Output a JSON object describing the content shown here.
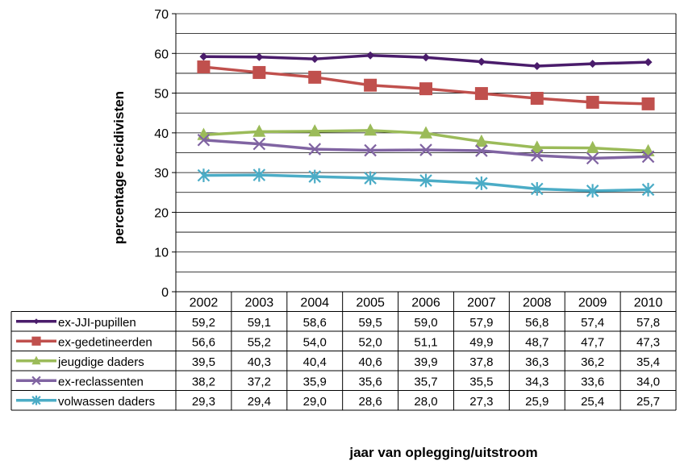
{
  "chart_data": {
    "type": "line",
    "title": "",
    "xlabel": "jaar van oplegging/uitstroom",
    "ylabel": "percentage recidivisten",
    "ylim": [
      0,
      70
    ],
    "yticks": [
      "0",
      "10",
      "20",
      "30",
      "40",
      "50",
      "60",
      "70"
    ],
    "ytick_values": [
      0,
      10,
      20,
      30,
      40,
      50,
      60,
      70
    ],
    "grid_step": 5,
    "grid": true,
    "legend": "data-table",
    "categories": [
      "2002",
      "2003",
      "2004",
      "2005",
      "2006",
      "2007",
      "2008",
      "2009",
      "2010"
    ],
    "series": [
      {
        "name": "ex-JJI-pupillen",
        "color": "#4a1c6b",
        "marker": "diamond",
        "values": [
          59.2,
          59.1,
          58.6,
          59.5,
          59.0,
          57.9,
          56.8,
          57.4,
          57.8
        ],
        "labels": [
          "59,2",
          "59,1",
          "58,6",
          "59,5",
          "59,0",
          "57,9",
          "56,8",
          "57,4",
          "57,8"
        ]
      },
      {
        "name": "ex-gedetineerden",
        "color": "#c0504d",
        "marker": "square",
        "values": [
          56.6,
          55.2,
          54.0,
          52.0,
          51.1,
          49.9,
          48.7,
          47.7,
          47.3
        ],
        "labels": [
          "56,6",
          "55,2",
          "54,0",
          "52,0",
          "51,1",
          "49,9",
          "48,7",
          "47,7",
          "47,3"
        ]
      },
      {
        "name": "jeugdige daders",
        "color": "#9bbb59",
        "marker": "triangle",
        "values": [
          39.5,
          40.3,
          40.4,
          40.6,
          39.9,
          37.8,
          36.3,
          36.2,
          35.4
        ],
        "labels": [
          "39,5",
          "40,3",
          "40,4",
          "40,6",
          "39,9",
          "37,8",
          "36,3",
          "36,2",
          "35,4"
        ]
      },
      {
        "name": "ex-reclassenten",
        "color": "#8064a2",
        "marker": "x",
        "values": [
          38.2,
          37.2,
          35.9,
          35.6,
          35.7,
          35.5,
          34.3,
          33.6,
          34.0
        ],
        "labels": [
          "38,2",
          "37,2",
          "35,9",
          "35,6",
          "35,7",
          "35,5",
          "34,3",
          "33,6",
          "34,0"
        ]
      },
      {
        "name": "volwassen daders",
        "color": "#4bacc6",
        "marker": "asterisk",
        "values": [
          29.3,
          29.4,
          29.0,
          28.6,
          28.0,
          27.3,
          25.9,
          25.4,
          25.7
        ],
        "labels": [
          "29,3",
          "29,4",
          "29,0",
          "28,6",
          "28,0",
          "27,3",
          "25,9",
          "25,4",
          "25,7"
        ]
      }
    ]
  }
}
